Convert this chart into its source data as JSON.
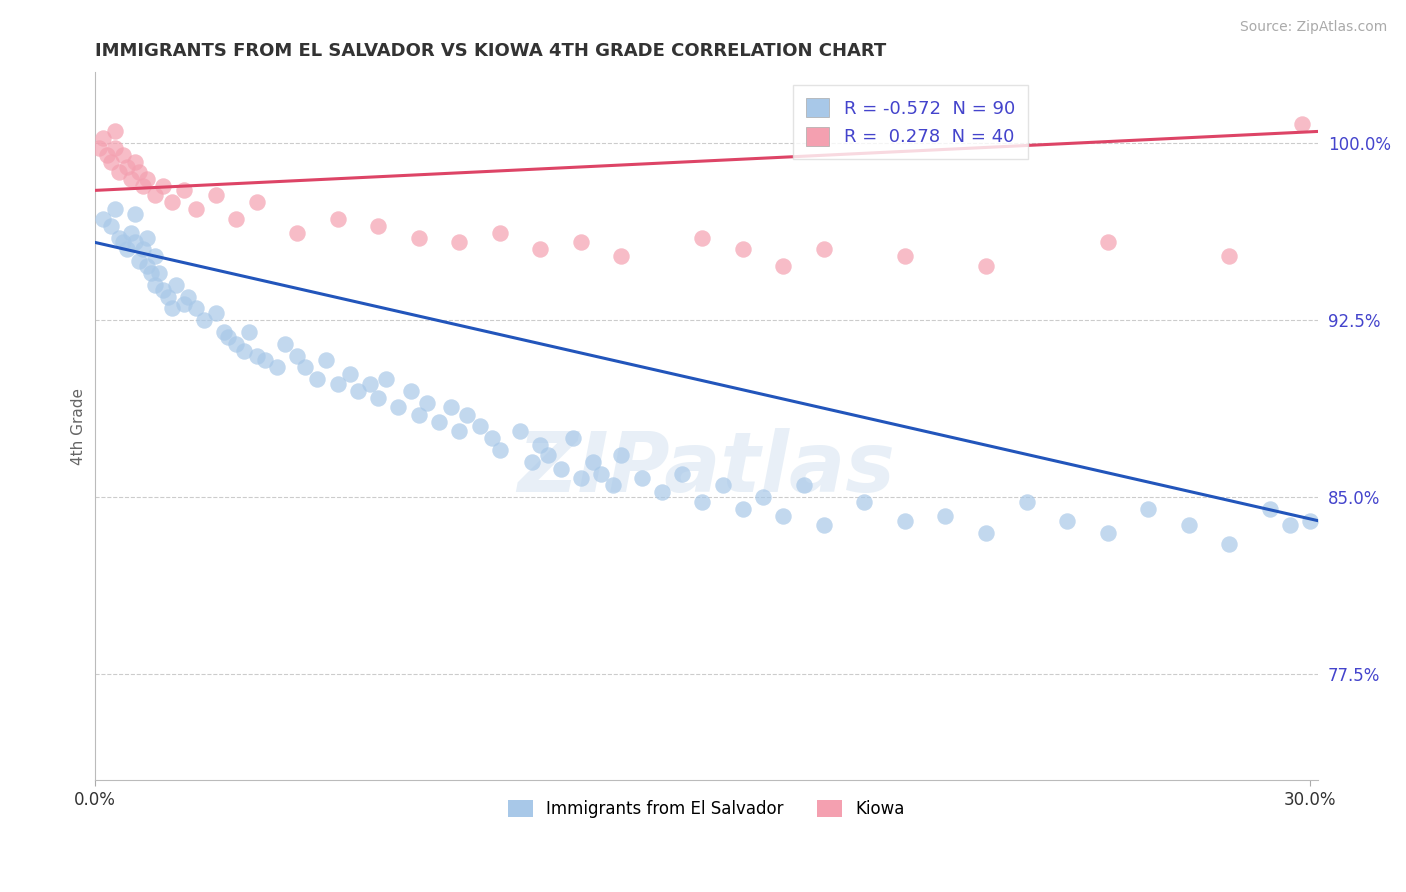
{
  "title": "IMMIGRANTS FROM EL SALVADOR VS KIOWA 4TH GRADE CORRELATION CHART",
  "source_text": "Source: ZipAtlas.com",
  "ylabel": "4th Grade",
  "xlim": [
    0.0,
    0.302
  ],
  "ylim": [
    0.73,
    1.03
  ],
  "y_tick_values": [
    0.775,
    0.85,
    0.925,
    1.0
  ],
  "y_tick_labels": [
    "77.5%",
    "85.0%",
    "92.5%",
    "100.0%"
  ],
  "x_tick_values": [
    0.0,
    0.3
  ],
  "x_tick_labels": [
    "0.0%",
    "30.0%"
  ],
  "blue_R": -0.572,
  "blue_N": 90,
  "pink_R": 0.278,
  "pink_N": 40,
  "blue_color": "#A8C8E8",
  "pink_color": "#F4A0B0",
  "blue_line_color": "#2255BB",
  "pink_line_color": "#DD4466",
  "legend_blue_label": "Immigrants from El Salvador",
  "legend_pink_label": "Kiowa",
  "watermark_text": "ZIPatlas",
  "background_color": "#FFFFFF",
  "grid_color": "#CCCCCC",
  "title_color": "#333333",
  "right_tick_color": "#4444CC",
  "blue_scatter_x": [
    0.002,
    0.004,
    0.005,
    0.006,
    0.007,
    0.008,
    0.009,
    0.01,
    0.01,
    0.011,
    0.012,
    0.013,
    0.013,
    0.014,
    0.015,
    0.015,
    0.016,
    0.017,
    0.018,
    0.019,
    0.02,
    0.022,
    0.023,
    0.025,
    0.027,
    0.03,
    0.032,
    0.033,
    0.035,
    0.037,
    0.038,
    0.04,
    0.042,
    0.045,
    0.047,
    0.05,
    0.052,
    0.055,
    0.057,
    0.06,
    0.063,
    0.065,
    0.068,
    0.07,
    0.072,
    0.075,
    0.078,
    0.08,
    0.082,
    0.085,
    0.088,
    0.09,
    0.092,
    0.095,
    0.098,
    0.1,
    0.105,
    0.108,
    0.11,
    0.112,
    0.115,
    0.118,
    0.12,
    0.123,
    0.125,
    0.128,
    0.13,
    0.135,
    0.14,
    0.145,
    0.15,
    0.155,
    0.16,
    0.165,
    0.17,
    0.175,
    0.18,
    0.19,
    0.2,
    0.21,
    0.22,
    0.23,
    0.24,
    0.25,
    0.26,
    0.27,
    0.28,
    0.29,
    0.295,
    0.3
  ],
  "blue_scatter_y": [
    0.968,
    0.965,
    0.972,
    0.96,
    0.958,
    0.955,
    0.962,
    0.958,
    0.97,
    0.95,
    0.955,
    0.948,
    0.96,
    0.945,
    0.952,
    0.94,
    0.945,
    0.938,
    0.935,
    0.93,
    0.94,
    0.932,
    0.935,
    0.93,
    0.925,
    0.928,
    0.92,
    0.918,
    0.915,
    0.912,
    0.92,
    0.91,
    0.908,
    0.905,
    0.915,
    0.91,
    0.905,
    0.9,
    0.908,
    0.898,
    0.902,
    0.895,
    0.898,
    0.892,
    0.9,
    0.888,
    0.895,
    0.885,
    0.89,
    0.882,
    0.888,
    0.878,
    0.885,
    0.88,
    0.875,
    0.87,
    0.878,
    0.865,
    0.872,
    0.868,
    0.862,
    0.875,
    0.858,
    0.865,
    0.86,
    0.855,
    0.868,
    0.858,
    0.852,
    0.86,
    0.848,
    0.855,
    0.845,
    0.85,
    0.842,
    0.855,
    0.838,
    0.848,
    0.84,
    0.842,
    0.835,
    0.848,
    0.84,
    0.835,
    0.845,
    0.838,
    0.83,
    0.845,
    0.838,
    0.84
  ],
  "pink_scatter_x": [
    0.001,
    0.002,
    0.003,
    0.004,
    0.005,
    0.005,
    0.006,
    0.007,
    0.008,
    0.009,
    0.01,
    0.011,
    0.012,
    0.013,
    0.015,
    0.017,
    0.019,
    0.022,
    0.025,
    0.03,
    0.035,
    0.04,
    0.05,
    0.06,
    0.07,
    0.08,
    0.09,
    0.1,
    0.11,
    0.12,
    0.13,
    0.15,
    0.16,
    0.17,
    0.18,
    0.2,
    0.22,
    0.25,
    0.28,
    0.298
  ],
  "pink_scatter_y": [
    0.998,
    1.002,
    0.995,
    0.992,
    0.998,
    1.005,
    0.988,
    0.995,
    0.99,
    0.985,
    0.992,
    0.988,
    0.982,
    0.985,
    0.978,
    0.982,
    0.975,
    0.98,
    0.972,
    0.978,
    0.968,
    0.975,
    0.962,
    0.968,
    0.965,
    0.96,
    0.958,
    0.962,
    0.955,
    0.958,
    0.952,
    0.96,
    0.955,
    0.948,
    0.955,
    0.952,
    0.948,
    0.958,
    0.952,
    1.008
  ],
  "blue_trend": [
    0.0,
    0.958,
    0.302,
    0.84
  ],
  "pink_trend": [
    0.0,
    0.98,
    0.302,
    1.005
  ]
}
